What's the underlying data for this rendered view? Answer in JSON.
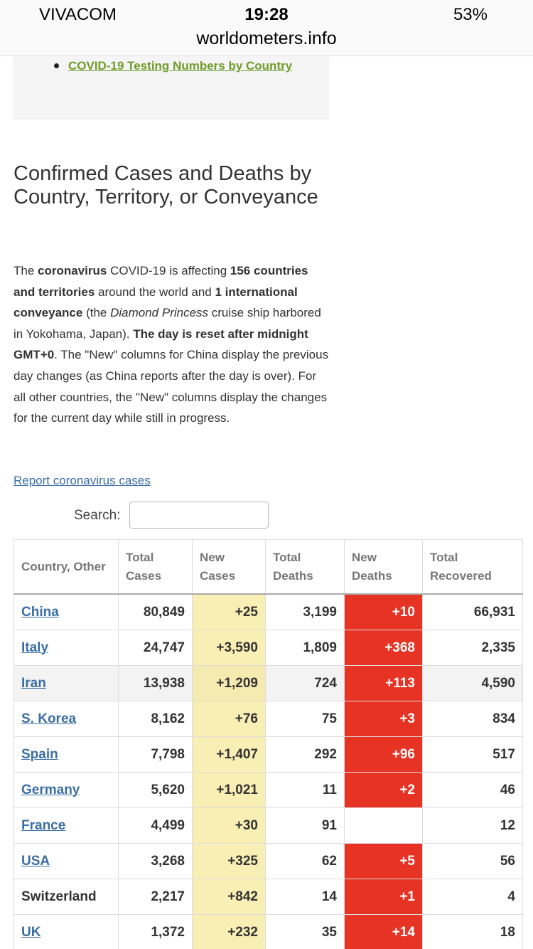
{
  "status_bar": {
    "carrier": "VIVACOM",
    "time": "19:28",
    "battery": "53%",
    "url": "worldometers.info"
  },
  "nav_link": "COVID-19 Testing Numbers by Country",
  "section_title": "Confirmed Cases and Deaths by Country, Territory, or Conveyance",
  "intro": [
    {
      "text": "The ",
      "style": "plain"
    },
    {
      "text": "coronavirus",
      "style": "bold"
    },
    {
      "text": " COVID-19 is affecting ",
      "style": "plain"
    },
    {
      "text": "156 countries and territories",
      "style": "bold"
    },
    {
      "text": " around the world and ",
      "style": "plain"
    },
    {
      "text": "1 international conveyance",
      "style": "bold"
    },
    {
      "text": " (the ",
      "style": "plain"
    },
    {
      "text": "Diamond Princess",
      "style": "italic"
    },
    {
      "text": " cruise ship harbored in Yokohama, Japan). ",
      "style": "plain"
    },
    {
      "text": "The day is reset after midnight GMT+0",
      "style": "bold"
    },
    {
      "text": ". The \"New\" columns for China display the previous day changes (as China reports after the day is over). For all other countries, the \"New\" columns display the changes for the current day while still in progress.",
      "style": "plain"
    }
  ],
  "report_link": "Report coronavirus cases",
  "search_label": "Search:",
  "table": {
    "headers": [
      "Country, Other",
      "Total Cases",
      "New Cases",
      "Total Deaths",
      "New Deaths",
      "Total Recovered"
    ],
    "rows": [
      {
        "link": true,
        "cells": [
          "China",
          "80,849",
          "+25",
          "3,199",
          "+10",
          "66,931"
        ]
      },
      {
        "link": true,
        "cells": [
          "Italy",
          "24,747",
          "+3,590",
          "1,809",
          "+368",
          "2,335"
        ]
      },
      {
        "link": true,
        "cells": [
          "Iran",
          "13,938",
          "+1,209",
          "724",
          "+113",
          "4,590"
        ]
      },
      {
        "link": true,
        "cells": [
          "S. Korea",
          "8,162",
          "+76",
          "75",
          "+3",
          "834"
        ]
      },
      {
        "link": true,
        "cells": [
          "Spain",
          "7,798",
          "+1,407",
          "292",
          "+96",
          "517"
        ]
      },
      {
        "link": true,
        "cells": [
          "Germany",
          "5,620",
          "+1,021",
          "11",
          "+2",
          "46"
        ]
      },
      {
        "link": true,
        "cells": [
          "France",
          "4,499",
          "+30",
          "91",
          null,
          "12"
        ]
      },
      {
        "link": true,
        "cells": [
          "USA",
          "3,268",
          "+325",
          "62",
          "+5",
          "56"
        ]
      },
      {
        "link": false,
        "cells": [
          "Switzerland",
          "2,217",
          "+842",
          "14",
          "+1",
          "4"
        ]
      },
      {
        "link": true,
        "cells": [
          "UK",
          "1,372",
          "+232",
          "35",
          "+14",
          "18"
        ]
      }
    ]
  }
}
